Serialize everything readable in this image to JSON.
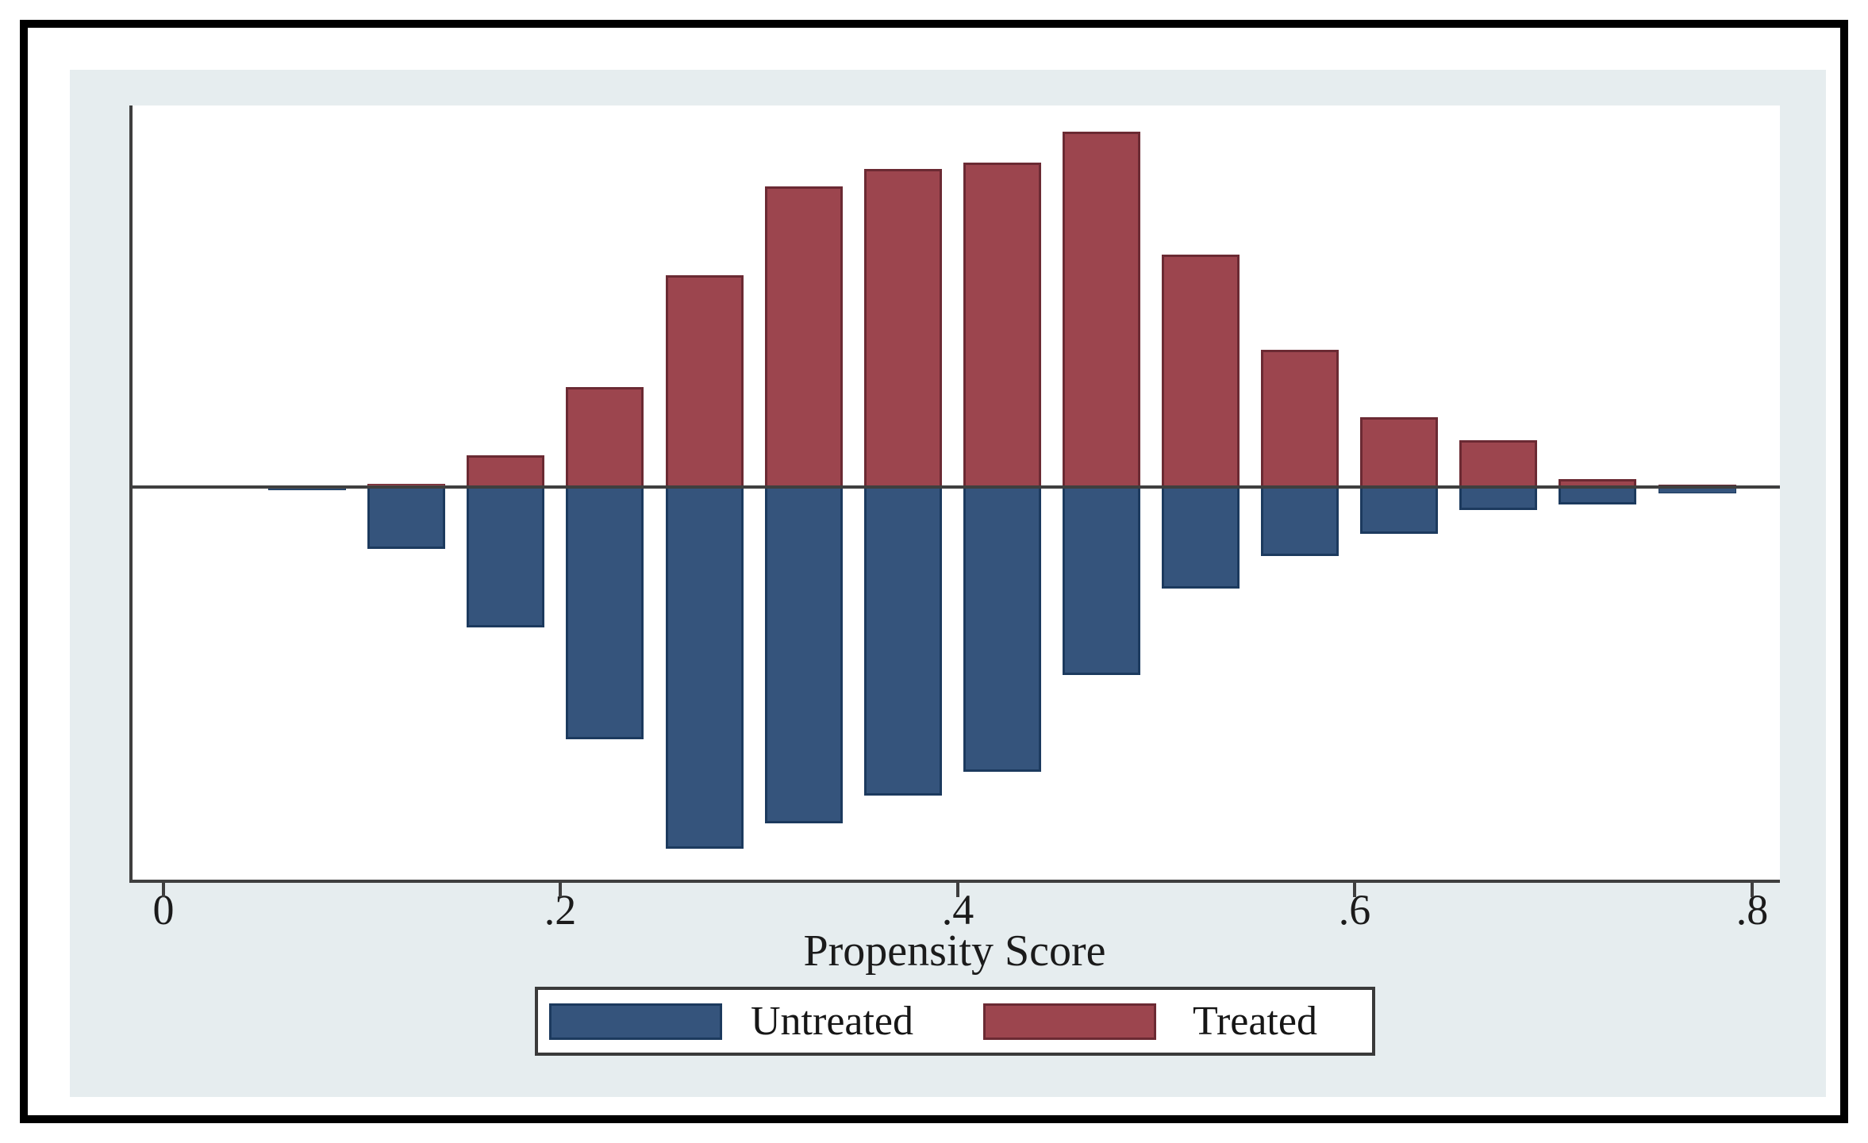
{
  "chart_data": {
    "type": "bar",
    "variant": "mirror-histogram",
    "title": "",
    "xlabel": "Propensity Score",
    "ylabel": "",
    "grid": false,
    "x_axis": {
      "min": 0,
      "max": 0.83,
      "ticks": [
        {
          "value": 0,
          "label": "0"
        },
        {
          "value": 0.2,
          "label": ".2"
        },
        {
          "value": 0.4,
          "label": ".4"
        },
        {
          "value": 0.6,
          "label": ".6"
        },
        {
          "value": 0.8,
          "label": ".8"
        }
      ]
    },
    "y_axis": {
      "labels_shown": false,
      "note": "No y tick labels in figure; values are relative bar heights, tallest bar = 1.0"
    },
    "bin_width": 0.05,
    "bin_starts": [
      0.05,
      0.1,
      0.15,
      0.2,
      0.25,
      0.3,
      0.35,
      0.4,
      0.45,
      0.5,
      0.55,
      0.6,
      0.65,
      0.7,
      0.75
    ],
    "series": [
      {
        "name": "Treated",
        "side": "above",
        "color": "#9c454e",
        "border_color": "#6b2a33",
        "values": [
          0,
          0.009,
          0.088,
          0.276,
          0.586,
          0.831,
          0.879,
          0.897,
          0.982,
          0.643,
          0.379,
          0.193,
          0.129,
          0.022,
          0.007
        ]
      },
      {
        "name": "Untreated",
        "side": "below",
        "color": "#35547c",
        "border_color": "#1c3a5e",
        "values": [
          0.009,
          0.171,
          0.388,
          0.697,
          1.0,
          0.93,
          0.853,
          0.787,
          0.52,
          0.281,
          0.191,
          0.129,
          0.064,
          0.048,
          0.018
        ]
      }
    ],
    "legend": {
      "position": "bottom-center",
      "entries": [
        "Untreated",
        "Treated"
      ]
    },
    "colors": {
      "canvas_bg": "#e6edef",
      "plot_bg": "#ffffff",
      "axis": "#3f3f3f",
      "outer_frame": "#000000",
      "text": "#1b1b1b"
    }
  }
}
